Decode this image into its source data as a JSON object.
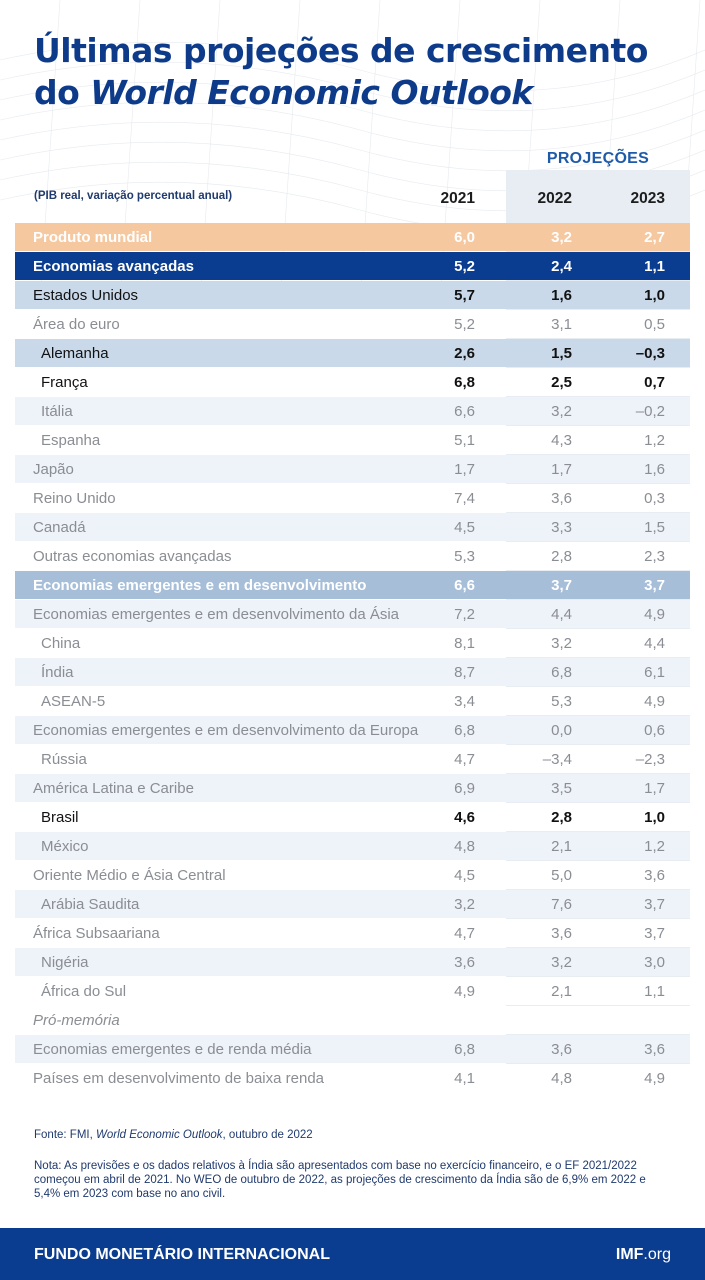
{
  "title": {
    "line1": "Últimas projeções de crescimento",
    "line2_prefix": "do ",
    "line2_italic": "World Economic Outlook"
  },
  "header": {
    "subtitle": "(PIB real, variação percentual anual)",
    "projections_label": "PROJEÇÕES",
    "years": [
      "2021",
      "2022",
      "2023"
    ]
  },
  "chart_data": {
    "type": "table",
    "columns": [
      "2021",
      "2022",
      "2023"
    ],
    "rows": [
      {
        "label": "Produto mundial",
        "values": [
          "6,0",
          "3,2",
          "2,7"
        ],
        "style": "world"
      },
      {
        "label": "Economias avançadas",
        "values": [
          "5,2",
          "2,4",
          "1,1"
        ],
        "style": "adv"
      },
      {
        "label": "Estados Unidos",
        "values": [
          "5,7",
          "1,6",
          "1,0"
        ],
        "style": "hi"
      },
      {
        "label": "Área do euro",
        "values": [
          "5,2",
          "3,1",
          "0,5"
        ],
        "style": "light plain"
      },
      {
        "label": "Alemanha",
        "values": [
          "2,6",
          "1,5",
          "–0,3"
        ],
        "style": "hi ind"
      },
      {
        "label": "França",
        "values": [
          "6,8",
          "2,5",
          "0,7"
        ],
        "style": "dark ind"
      },
      {
        "label": "Itália",
        "values": [
          "6,6",
          "3,2",
          "–0,2"
        ],
        "style": "light alt ind"
      },
      {
        "label": "Espanha",
        "values": [
          "5,1",
          "4,3",
          "1,2"
        ],
        "style": "light plain ind"
      },
      {
        "label": "Japão",
        "values": [
          "1,7",
          "1,7",
          "1,6"
        ],
        "style": "light alt"
      },
      {
        "label": "Reino Unido",
        "values": [
          "7,4",
          "3,6",
          "0,3"
        ],
        "style": "light plain"
      },
      {
        "label": "Canadá",
        "values": [
          "4,5",
          "3,3",
          "1,5"
        ],
        "style": "light alt"
      },
      {
        "label": "Outras economias avançadas",
        "values": [
          "5,3",
          "2,8",
          "2,3"
        ],
        "style": "light plain"
      },
      {
        "label": "Economias emergentes e em desenvolvimento",
        "values": [
          "6,6",
          "3,7",
          "3,7"
        ],
        "style": "emerg"
      },
      {
        "label": "Economias emergentes e em desenvolvimento da Ásia",
        "values": [
          "7,2",
          "4,4",
          "4,9"
        ],
        "style": "light alt"
      },
      {
        "label": "China",
        "values": [
          "8,1",
          "3,2",
          "4,4"
        ],
        "style": "light plain ind"
      },
      {
        "label": "Índia",
        "values": [
          "8,7",
          "6,8",
          "6,1"
        ],
        "style": "light alt ind"
      },
      {
        "label": "ASEAN-5",
        "values": [
          "3,4",
          "5,3",
          "4,9"
        ],
        "style": "light plain ind"
      },
      {
        "label": "Economias emergentes e em desenvolvimento da Europa",
        "values": [
          "6,8",
          "0,0",
          "0,6"
        ],
        "style": "light alt"
      },
      {
        "label": "Rússia",
        "values": [
          "4,7",
          "–3,4",
          "–2,3"
        ],
        "style": "light plain ind"
      },
      {
        "label": "América Latina e Caribe",
        "values": [
          "6,9",
          "3,5",
          "1,7"
        ],
        "style": "light alt"
      },
      {
        "label": "Brasil",
        "values": [
          "4,6",
          "2,8",
          "1,0"
        ],
        "style": "dark ind"
      },
      {
        "label": "México",
        "values": [
          "4,8",
          "2,1",
          "1,2"
        ],
        "style": "light alt ind"
      },
      {
        "label": "Oriente Médio e Ásia Central",
        "values": [
          "4,5",
          "5,0",
          "3,6"
        ],
        "style": "light plain"
      },
      {
        "label": "Arábia Saudita",
        "values": [
          "3,2",
          "7,6",
          "3,7"
        ],
        "style": "light alt ind"
      },
      {
        "label": "África Subsaariana",
        "values": [
          "4,7",
          "3,6",
          "3,7"
        ],
        "style": "light plain"
      },
      {
        "label": "Nigéria",
        "values": [
          "3,6",
          "3,2",
          "3,0"
        ],
        "style": "light alt ind"
      },
      {
        "label": "África do Sul",
        "values": [
          "4,9",
          "2,1",
          "1,1"
        ],
        "style": "light plain ind"
      },
      {
        "label": "Pró-memória",
        "values": [
          "",
          "",
          ""
        ],
        "style": "light plain note"
      },
      {
        "label": "Economias emergentes e de renda média",
        "values": [
          "6,8",
          "3,6",
          "3,6"
        ],
        "style": "light alt"
      },
      {
        "label": "Países em desenvolvimento de baixa renda",
        "values": [
          "4,1",
          "4,8",
          "4,9"
        ],
        "style": "light plain"
      }
    ]
  },
  "footnotes": {
    "source_prefix": "Fonte: FMI, ",
    "source_italic": "World Economic Outlook",
    "source_suffix": ", outubro de 2022",
    "note": "Nota: As previsões e os dados relativos à Índia são apresentados com base no exercício financeiro, e o EF 2021/2022 começou em abril de 2021. No WEO de outubro de 2022, as projeções de crescimento da Índia são de 6,9% em 2022 e 5,4% em 2023 com base no ano civil."
  },
  "footer": {
    "org": "FUNDO MONETÁRIO INTERNACIONAL",
    "url_bold": "IMF",
    "url_rest": ".org"
  },
  "colors": {
    "title": "#0d3b8a",
    "world_row": "#f5c8a0",
    "advanced_row": "#0a3d8f",
    "emerging_row": "#a7bed9",
    "highlight_row": "#c9d9ea",
    "projection_bg": "#e7edf3"
  }
}
